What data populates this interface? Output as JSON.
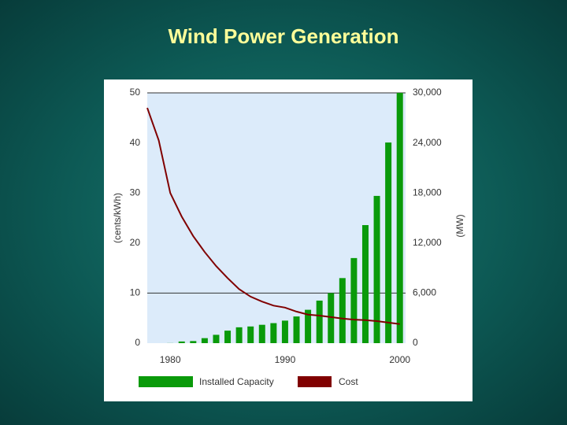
{
  "chart_data": {
    "type": "bar",
    "title": "Wind Power Generation",
    "y_label": "(cents/kWh)",
    "y2_label": "(MW)",
    "x": [
      1980,
      1981,
      1982,
      1983,
      1984,
      1985,
      1986,
      1987,
      1988,
      1989,
      1990,
      1991,
      1992,
      1993,
      1994,
      1995,
      1996,
      1997,
      1998,
      1999,
      2000
    ],
    "xlim": [
      1978,
      2000.5
    ],
    "xticks": [
      1980,
      1990,
      2000
    ],
    "ylim": [
      0,
      50
    ],
    "yticks": [
      0,
      10,
      20,
      30,
      40,
      50
    ],
    "y2lim": [
      0,
      30000
    ],
    "y2ticks": [
      0,
      {
        "value": 6000,
        "label": "6,000"
      },
      {
        "value": 12000,
        "label": "12,000"
      },
      {
        "value": 18000,
        "label": "18,000"
      },
      {
        "value": 24000,
        "label": "24,000"
      },
      {
        "value": 30000,
        "label": "30,000"
      }
    ],
    "grid_lines": [
      10,
      50
    ],
    "series": [
      {
        "name": "Installed Capacity",
        "type": "bar",
        "axis": "y2",
        "color": "#0a9a0a",
        "values": [
          10,
          200,
          250,
          600,
          1000,
          1500,
          1900,
          2000,
          2200,
          2400,
          2700,
          3200,
          4000,
          5100,
          6000,
          7800,
          10200,
          14150,
          17650,
          24050,
          30000
        ]
      },
      {
        "name": "Cost",
        "type": "line",
        "axis": "y",
        "color": "#800000",
        "x": [
          1978,
          1979,
          1980,
          1981,
          1982,
          1983,
          1984,
          1985,
          1986,
          1987,
          1988,
          1989,
          1990,
          1991,
          1992,
          1993,
          1994,
          1995,
          1996,
          1997,
          1998,
          1999,
          2000
        ],
        "values": [
          47,
          40.5,
          30,
          25.3,
          21.4,
          18.2,
          15.4,
          13,
          10.8,
          9.3,
          8.3,
          7.5,
          7.1,
          6.3,
          5.7,
          5.5,
          5.2,
          4.9,
          4.7,
          4.6,
          4.4,
          4.1,
          3.8
        ]
      }
    ]
  }
}
